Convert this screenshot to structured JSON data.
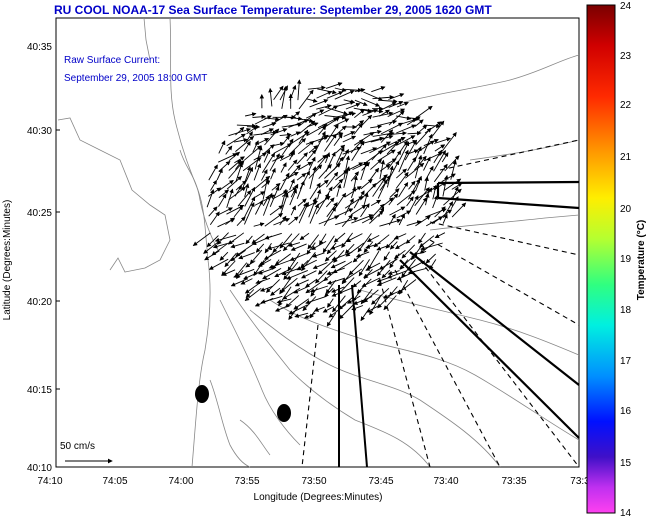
{
  "title": "RU COOL  NOAA-17  Sea Surface Temperature:  September 29, 2005 1620 GMT",
  "annotation": {
    "line1": "Raw Surface Current:",
    "line2": "September 29, 2005 18:00 GMT"
  },
  "scale_label": "50 cm/s",
  "axes": {
    "xlabel": "Longitude (Degrees:Minutes)",
    "ylabel": "Latitude (Degrees:Minutes)",
    "x_ticks": [
      "74:10",
      "74:05",
      "74:00",
      "73:55",
      "73:50",
      "73:45",
      "73:40",
      "73:35",
      "73:3"
    ],
    "y_ticks": [
      "40:35",
      "40:30",
      "40:25",
      "40:20",
      "40:15",
      "40:10"
    ]
  },
  "colorbar": {
    "label": "Temperature (°C)",
    "ticks": [
      "24",
      "23",
      "22",
      "21",
      "20",
      "19",
      "18",
      "17",
      "16",
      "15",
      "14"
    ]
  }
}
